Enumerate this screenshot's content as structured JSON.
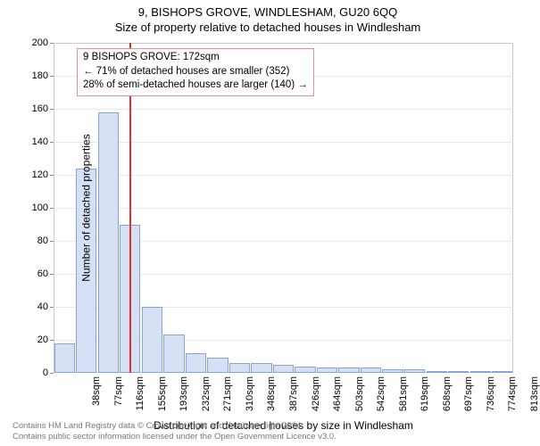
{
  "titles": {
    "super": "9, BISHOPS GROVE, WINDLESHAM, GU20 6QQ",
    "sub": "Size of property relative to detached houses in Windlesham"
  },
  "chart": {
    "type": "bar",
    "background_color": "#ffffff",
    "bar_fill": "#d6e0f5",
    "bar_stroke": "#8aa2d6",
    "grid_color": "#e8e8e8",
    "border_color": "#c8c8c8",
    "ref_line_color": "#e03030",
    "ylabel": "Number of detached properties",
    "xlabel": "Distribution of detached houses by size in Windlesham",
    "label_fontsize": 12,
    "tick_fontsize": 11,
    "ylim": [
      0,
      200
    ],
    "ytick_step": 20,
    "bar_width": 0.95,
    "x_ticks": [
      "38sqm",
      "77sqm",
      "116sqm",
      "155sqm",
      "193sqm",
      "232sqm",
      "271sqm",
      "310sqm",
      "348sqm",
      "387sqm",
      "426sqm",
      "464sqm",
      "503sqm",
      "542sqm",
      "581sqm",
      "619sqm",
      "658sqm",
      "697sqm",
      "736sqm",
      "774sqm",
      "813sqm"
    ],
    "values": [
      18,
      124,
      158,
      90,
      40,
      23,
      12,
      9,
      6,
      6,
      5,
      4,
      3,
      3,
      3,
      2,
      2,
      1,
      1,
      1,
      1
    ],
    "reference": {
      "x_position": 3.45,
      "annotation_lines": [
        "9 BISHOPS GROVE: 172sqm",
        "← 71% of detached houses are smaller (352)",
        "28% of semi-detached houses are larger (140) →"
      ]
    }
  },
  "footer": {
    "line1": "Contains HM Land Registry data © Crown copyright and database right 2024.",
    "line2": "Contains public sector information licensed under the Open Government Licence v3.0."
  }
}
